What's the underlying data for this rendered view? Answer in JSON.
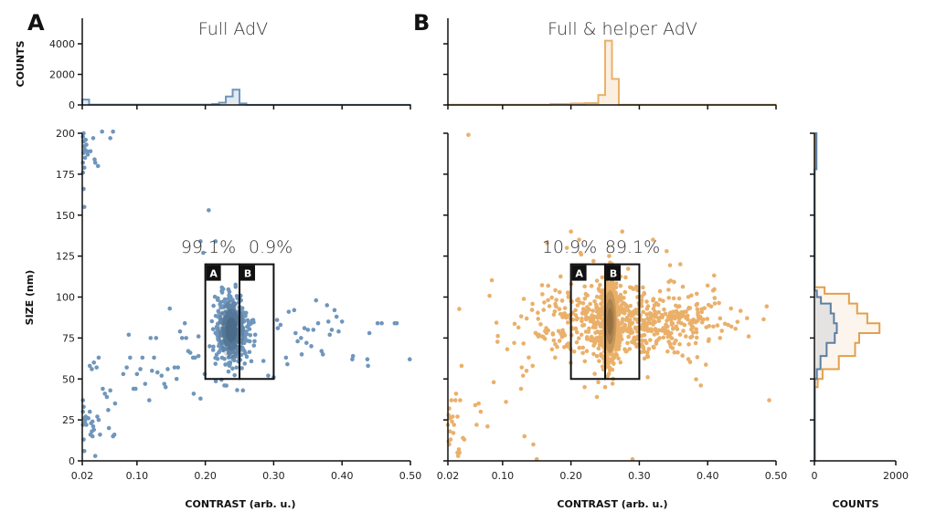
{
  "chart_data": [
    {
      "id": "panelA",
      "type": "scatter",
      "panel_letter": "A",
      "title": "Full AdV",
      "xlabel": "CONTRAST (arb. u.)",
      "ylabel": "SIZE (nm)",
      "xlim": [
        0.02,
        0.5
      ],
      "ylim": [
        0,
        200
      ],
      "xticks": [
        0.02,
        0.1,
        0.2,
        0.3,
        0.4,
        0.5
      ],
      "xtick_labels": [
        "0.02",
        "0.10",
        "0.20",
        "0.30",
        "0.40",
        "0.50"
      ],
      "yticks": [
        0,
        25,
        50,
        75,
        100,
        125,
        150,
        175,
        200
      ],
      "ytick_labels": [
        "0",
        "25",
        "50",
        "75",
        "100",
        "125",
        "150",
        "175",
        "200"
      ],
      "color": "#6f96bc",
      "density_color": "#1f3550",
      "gates": [
        {
          "label": "A",
          "x": [
            0.2,
            0.25
          ],
          "y": [
            50,
            120
          ],
          "percent": "99.1%"
        },
        {
          "label": "B",
          "x": [
            0.25,
            0.3
          ],
          "y": [
            50,
            120
          ],
          "percent": "0.9%"
        }
      ],
      "cluster": {
        "center": [
          0.238,
          80
        ],
        "spread": [
          0.012,
          11
        ],
        "count": 420
      },
      "points": [
        [
          0.021,
          198
        ],
        [
          0.022,
          195
        ],
        [
          0.023,
          192
        ],
        [
          0.022,
          188
        ],
        [
          0.024,
          185
        ],
        [
          0.021,
          182
        ],
        [
          0.023,
          179
        ],
        [
          0.025,
          196
        ],
        [
          0.026,
          193
        ],
        [
          0.024,
          190
        ],
        [
          0.022,
          200
        ],
        [
          0.027,
          189
        ],
        [
          0.028,
          187
        ],
        [
          0.021,
          176
        ],
        [
          0.022,
          166
        ],
        [
          0.023,
          155
        ],
        [
          0.032,
          189
        ],
        [
          0.036,
          197
        ],
        [
          0.038,
          184
        ],
        [
          0.039,
          182
        ],
        [
          0.043,
          180
        ],
        [
          0.061,
          197
        ],
        [
          0.049,
          201
        ],
        [
          0.065,
          201
        ],
        [
          0.021,
          37
        ],
        [
          0.022,
          33
        ],
        [
          0.021,
          30
        ],
        [
          0.023,
          26
        ],
        [
          0.025,
          27
        ],
        [
          0.027,
          26
        ],
        [
          0.029,
          26
        ],
        [
          0.024,
          24
        ],
        [
          0.026,
          22
        ],
        [
          0.021,
          22
        ],
        [
          0.022,
          13
        ],
        [
          0.023,
          6
        ],
        [
          0.031,
          30
        ],
        [
          0.033,
          23
        ],
        [
          0.035,
          24
        ],
        [
          0.036,
          21
        ],
        [
          0.034,
          18
        ],
        [
          0.032,
          16
        ],
        [
          0.035,
          15
        ],
        [
          0.037,
          19
        ],
        [
          0.039,
          3
        ],
        [
          0.042,
          27
        ],
        [
          0.044,
          25
        ],
        [
          0.046,
          16
        ],
        [
          0.05,
          44
        ],
        [
          0.053,
          41
        ],
        [
          0.056,
          39
        ],
        [
          0.058,
          31
        ],
        [
          0.059,
          20
        ],
        [
          0.061,
          43
        ],
        [
          0.065,
          15
        ],
        [
          0.067,
          16
        ],
        [
          0.068,
          35
        ],
        [
          0.031,
          58
        ],
        [
          0.034,
          56
        ],
        [
          0.037,
          60
        ],
        [
          0.041,
          57
        ],
        [
          0.044,
          63
        ],
        [
          0.08,
          53
        ],
        [
          0.085,
          57
        ],
        [
          0.088,
          77
        ],
        [
          0.09,
          63
        ],
        [
          0.095,
          44
        ],
        [
          0.098,
          44
        ],
        [
          0.1,
          53
        ],
        [
          0.105,
          56
        ],
        [
          0.108,
          63
        ],
        [
          0.112,
          47
        ],
        [
          0.118,
          37
        ],
        [
          0.12,
          75
        ],
        [
          0.122,
          55
        ],
        [
          0.125,
          63
        ],
        [
          0.128,
          75
        ],
        [
          0.13,
          54
        ],
        [
          0.136,
          52
        ],
        [
          0.14,
          47
        ],
        [
          0.142,
          45
        ],
        [
          0.145,
          56
        ],
        [
          0.148,
          93
        ],
        [
          0.155,
          57
        ],
        [
          0.158,
          50
        ],
        [
          0.16,
          57
        ],
        [
          0.163,
          79
        ],
        [
          0.166,
          75
        ],
        [
          0.17,
          84
        ],
        [
          0.172,
          75
        ],
        [
          0.175,
          67
        ],
        [
          0.178,
          66
        ],
        [
          0.182,
          63
        ],
        [
          0.185,
          63
        ],
        [
          0.19,
          64
        ],
        [
          0.183,
          41
        ],
        [
          0.19,
          76
        ],
        [
          0.193,
          38
        ],
        [
          0.199,
          53
        ],
        [
          0.205,
          153
        ],
        [
          0.193,
          134
        ],
        [
          0.197,
          127
        ],
        [
          0.215,
          134
        ],
        [
          0.265,
          73
        ],
        [
          0.27,
          86
        ],
        [
          0.273,
          77
        ],
        [
          0.285,
          61
        ],
        [
          0.292,
          52
        ],
        [
          0.305,
          86
        ],
        [
          0.306,
          81
        ],
        [
          0.31,
          83
        ],
        [
          0.318,
          63
        ],
        [
          0.32,
          59
        ],
        [
          0.322,
          91
        ],
        [
          0.33,
          92
        ],
        [
          0.332,
          78
        ],
        [
          0.335,
          73
        ],
        [
          0.34,
          75
        ],
        [
          0.341,
          65
        ],
        [
          0.345,
          81
        ],
        [
          0.348,
          72
        ],
        [
          0.35,
          80
        ],
        [
          0.355,
          70
        ],
        [
          0.358,
          80
        ],
        [
          0.362,
          98
        ],
        [
          0.365,
          84
        ],
        [
          0.37,
          67
        ],
        [
          0.372,
          65
        ],
        [
          0.378,
          95
        ],
        [
          0.38,
          85
        ],
        [
          0.382,
          77
        ],
        [
          0.385,
          80
        ],
        [
          0.389,
          92
        ],
        [
          0.392,
          88
        ],
        [
          0.395,
          79
        ],
        [
          0.4,
          85
        ],
        [
          0.415,
          62
        ],
        [
          0.416,
          64
        ],
        [
          0.437,
          62
        ],
        [
          0.438,
          58
        ],
        [
          0.44,
          78
        ],
        [
          0.452,
          84
        ],
        [
          0.458,
          84
        ],
        [
          0.477,
          84
        ],
        [
          0.48,
          84
        ],
        [
          0.499,
          62
        ],
        [
          0.3,
          51
        ],
        [
          0.255,
          43
        ]
      ],
      "top_histogram": {
        "ylabel": "COUNTS",
        "ylim": [
          0,
          5000
        ],
        "yticks": [
          0,
          2000,
          4000
        ],
        "ytick_labels": [
          "0",
          "2000",
          "4000"
        ],
        "bins": [
          [
            0.02,
            0.03,
            350
          ],
          [
            0.03,
            0.21,
            20
          ],
          [
            0.21,
            0.22,
            60
          ],
          [
            0.22,
            0.23,
            150
          ],
          [
            0.23,
            0.24,
            550
          ],
          [
            0.24,
            0.25,
            1000
          ],
          [
            0.25,
            0.26,
            100
          ],
          [
            0.26,
            0.5,
            10
          ]
        ]
      }
    },
    {
      "id": "panelB",
      "type": "scatter",
      "panel_letter": "B",
      "title": "Full & helper AdV",
      "xlabel": "CONTRAST (arb. u.)",
      "ylabel": "SIZE (nm)",
      "xlim": [
        0.02,
        0.5
      ],
      "ylim": [
        0,
        200
      ],
      "xticks": [
        0.02,
        0.1,
        0.2,
        0.3,
        0.4,
        0.5
      ],
      "xtick_labels": [
        "0.02",
        "0.10",
        "0.20",
        "0.30",
        "0.40",
        "0.50"
      ],
      "yticks": [
        0,
        25,
        50,
        75,
        100,
        125,
        150,
        175,
        200
      ],
      "color": "#eab06a",
      "density_color": "#3a2510",
      "gates": [
        {
          "label": "A",
          "x": [
            0.2,
            0.25
          ],
          "y": [
            50,
            120
          ],
          "percent": "10.9%"
        },
        {
          "label": "B",
          "x": [
            0.25,
            0.3
          ],
          "y": [
            50,
            120
          ],
          "percent": "89.1%"
        }
      ],
      "cluster": {
        "center": [
          0.257,
          85
        ],
        "spread": [
          0.006,
          12
        ],
        "count": 650
      },
      "broad_cluster": {
        "center": [
          0.28,
          85
        ],
        "spread": [
          0.07,
          11
        ],
        "count": 650
      },
      "points": [
        [
          0.05,
          199
        ],
        [
          0.02,
          22
        ],
        [
          0.021,
          28
        ],
        [
          0.022,
          32
        ],
        [
          0.021,
          12
        ],
        [
          0.022,
          10
        ],
        [
          0.023,
          18
        ],
        [
          0.023,
          26
        ],
        [
          0.024,
          13
        ],
        [
          0.025,
          37
        ],
        [
          0.026,
          24
        ],
        [
          0.027,
          27
        ],
        [
          0.028,
          17
        ],
        [
          0.029,
          22
        ],
        [
          0.031,
          37
        ],
        [
          0.032,
          41
        ],
        [
          0.034,
          27
        ],
        [
          0.035,
          3
        ],
        [
          0.036,
          7
        ],
        [
          0.037,
          5
        ],
        [
          0.034,
          5
        ],
        [
          0.038,
          37
        ],
        [
          0.04,
          58
        ],
        [
          0.042,
          14
        ],
        [
          0.044,
          13
        ],
        [
          0.06,
          34
        ],
        [
          0.062,
          22
        ],
        [
          0.065,
          35
        ],
        [
          0.068,
          30
        ],
        [
          0.078,
          21
        ],
        [
          0.087,
          48
        ],
        [
          0.105,
          36
        ],
        [
          0.117,
          72
        ],
        [
          0.127,
          44
        ],
        [
          0.128,
          57
        ],
        [
          0.13,
          52
        ],
        [
          0.132,
          15
        ],
        [
          0.135,
          55
        ],
        [
          0.145,
          10
        ],
        [
          0.144,
          58
        ],
        [
          0.15,
          1
        ],
        [
          0.153,
          77
        ],
        [
          0.165,
          133
        ],
        [
          0.194,
          130
        ],
        [
          0.2,
          140
        ],
        [
          0.212,
          135
        ],
        [
          0.233,
          122
        ],
        [
          0.215,
          126
        ],
        [
          0.214,
          127
        ],
        [
          0.29,
          1
        ],
        [
          0.24,
          48
        ],
        [
          0.22,
          45
        ],
        [
          0.25,
          45
        ],
        [
          0.238,
          39
        ],
        [
          0.39,
          46
        ],
        [
          0.49,
          37
        ],
        [
          0.46,
          76
        ],
        [
          0.43,
          83
        ],
        [
          0.4,
          107
        ],
        [
          0.408,
          104
        ],
        [
          0.346,
          110
        ],
        [
          0.28,
          112
        ],
        [
          0.3,
          95
        ],
        [
          0.36,
          120
        ],
        [
          0.275,
          140
        ],
        [
          0.32,
          135
        ],
        [
          0.34,
          128
        ]
      ],
      "top_histogram": {
        "ylim": [
          0,
          5000
        ],
        "yticks": [
          0,
          2000,
          4000
        ],
        "bins": [
          [
            0.02,
            0.17,
            15
          ],
          [
            0.17,
            0.2,
            60
          ],
          [
            0.2,
            0.22,
            100
          ],
          [
            0.22,
            0.24,
            120
          ],
          [
            0.24,
            0.25,
            650
          ],
          [
            0.25,
            0.26,
            4200
          ],
          [
            0.26,
            0.27,
            1700
          ],
          [
            0.27,
            0.5,
            15
          ]
        ]
      }
    },
    {
      "id": "rightHist",
      "type": "bar",
      "orientation": "horizontal",
      "xlabel": "COUNTS",
      "xlim": [
        0,
        2000
      ],
      "xticks": [
        0,
        2000
      ],
      "xtick_labels": [
        "0",
        "2000"
      ],
      "ylim": [
        0,
        200
      ],
      "series": [
        {
          "name": "Full & helper AdV",
          "color": "#e3a04a",
          "bins": [
            [
              0,
              45,
              10
            ],
            [
              45,
              50,
              80
            ],
            [
              50,
              56,
              200
            ],
            [
              56,
              64,
              600
            ],
            [
              64,
              72,
              1000
            ],
            [
              72,
              78,
              1100
            ],
            [
              78,
              84,
              1600
            ],
            [
              84,
              90,
              1300
            ],
            [
              90,
              96,
              1050
            ],
            [
              96,
              102,
              850
            ],
            [
              102,
              106,
              250
            ],
            [
              106,
              200,
              10
            ]
          ]
        },
        {
          "name": "Full AdV",
          "color": "#5b7fa3",
          "bins": [
            [
              0,
              50,
              10
            ],
            [
              50,
              56,
              60
            ],
            [
              56,
              64,
              150
            ],
            [
              64,
              72,
              300
            ],
            [
              72,
              78,
              500
            ],
            [
              78,
              84,
              550
            ],
            [
              84,
              90,
              480
            ],
            [
              90,
              96,
              400
            ],
            [
              96,
              100,
              160
            ],
            [
              100,
              104,
              60
            ],
            [
              104,
              178,
              5
            ],
            [
              178,
              200,
              50
            ]
          ]
        }
      ]
    }
  ]
}
